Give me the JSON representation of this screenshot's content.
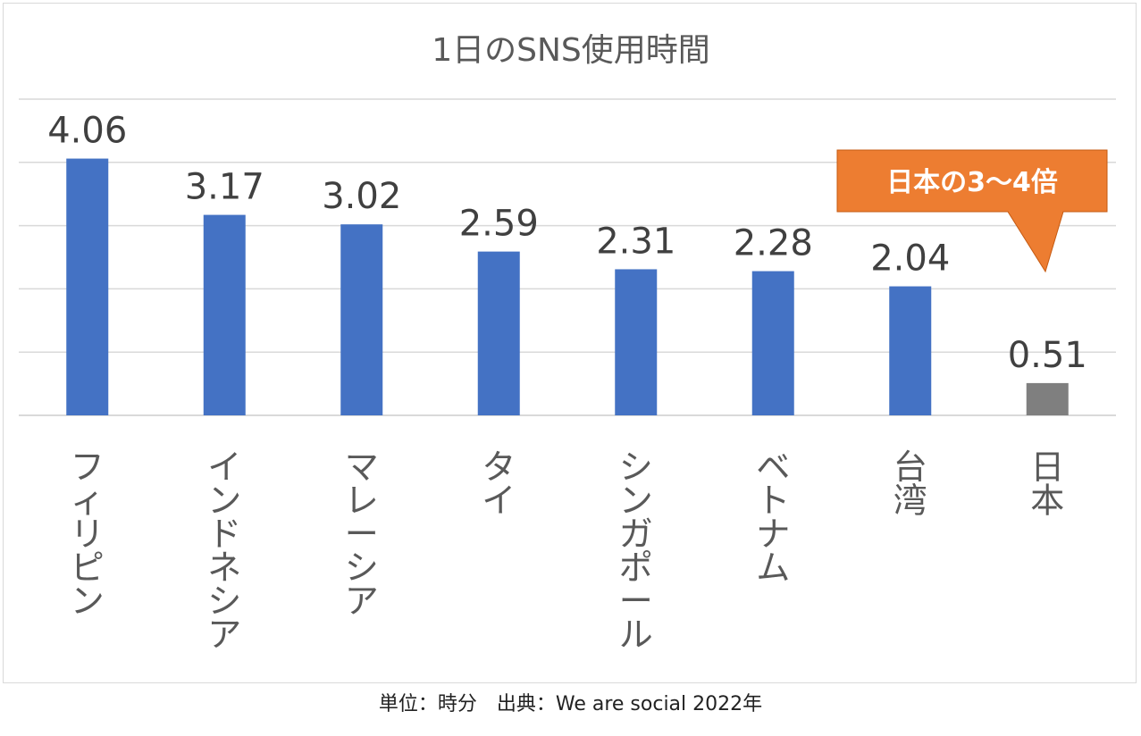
{
  "chart_data": {
    "type": "bar",
    "title": "1日のSNS使用時間",
    "categories": [
      "フィリピン",
      "インドネシア",
      "マレーシア",
      "タイ",
      "シンガポール",
      "ベトナム",
      "台湾",
      "日本"
    ],
    "values": [
      4.06,
      3.17,
      3.02,
      2.59,
      2.31,
      2.28,
      2.04,
      0.51
    ],
    "data_labels": [
      "4.06",
      "3.17",
      "3.02",
      "2.59",
      "2.31",
      "2.28",
      "2.04",
      "0.51"
    ],
    "ylim": [
      0,
      5
    ],
    "grid": true,
    "xlabel": "",
    "ylabel": "",
    "annotations": [
      {
        "text": "日本の3〜4倍",
        "target": "日本"
      }
    ]
  },
  "colors": {
    "bar_default": "#4472c4",
    "bar_highlight": "#7f7f7f",
    "callout": "#ed7d31",
    "gridline": "#d9d9d9"
  },
  "footer": "単位：時分　出典：We are social 2022年"
}
